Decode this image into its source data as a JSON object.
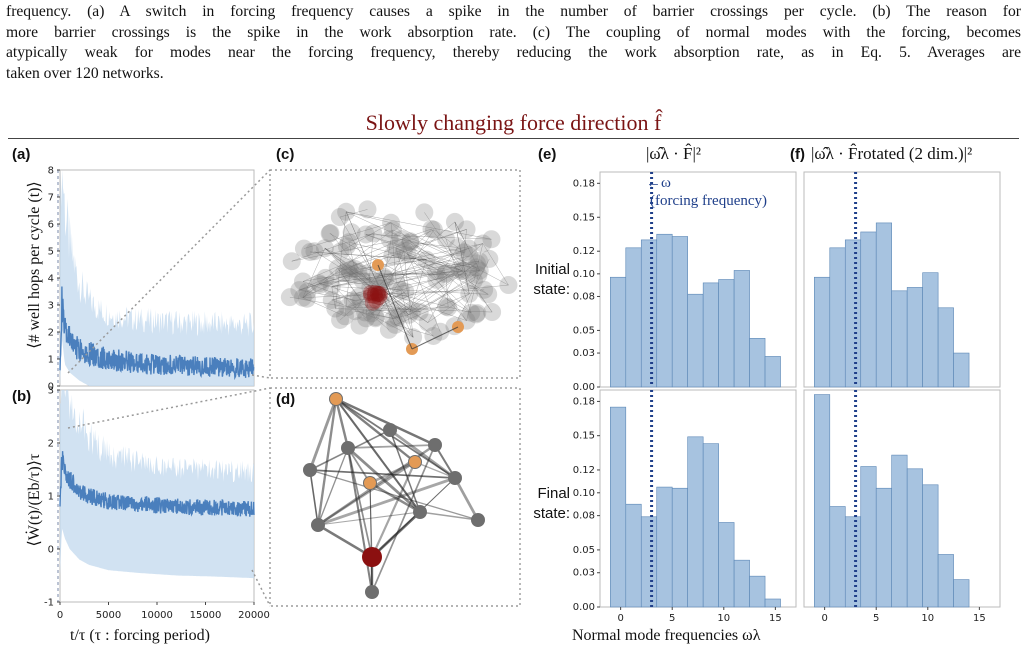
{
  "caption": {
    "lines": [
      "frequency. (a) A switch in forcing frequency causes a spike in the number of barrier crossings per cycle. (b) The reason for",
      "more barrier crossings is the spike in the work absorption rate. (c) The coupling of normal modes with the forcing, becomes",
      "atypically weak for modes near the forcing frequency, thereby reducing the work absorption rate, as in Eq. 5. Averages are",
      "taken over 120 networks."
    ]
  },
  "figure": {
    "title": "Slowly changing force direction f̂",
    "panel_labels": {
      "a": "(a)",
      "b": "(b)",
      "c": "(c)",
      "d": "(d)",
      "e": "(e)",
      "f": "(f)"
    },
    "hist_title_e": "|ω̂λ · F̂|²",
    "hist_title_f": "|ω̂λ · F̂rotated (2 dim.)|²",
    "state_initial": "Initial state:",
    "state_final": "Final state:",
    "annotation_omega": "←ω",
    "annotation_forcing": "(forcing frequency)",
    "ylabel_a": "⟨# well hops per cycle (t)⟩",
    "ylabel_b": "⟨Ẇ(t)/(Eb/τ)⟩τ",
    "xlabel_left": "t/τ    (τ : forcing period)",
    "xlabel_right": "Normal mode frequencies ωλ",
    "colors": {
      "title": "#7a1414",
      "bar": "#a7c3e0",
      "bar_edge": "#5a86b5",
      "line_dark": "#4a7fbd",
      "line_light": "#c2d8ee",
      "dotted": "#1f3f8a",
      "node_orange": "#e39a55",
      "node_red": "#8b1010"
    }
  },
  "chart_data": [
    {
      "type": "line",
      "panel": "(a)",
      "ylabel": "⟨# well hops per cycle (t)⟩",
      "xlabel": "t/τ (τ : forcing period)",
      "xlim": [
        0,
        20000
      ],
      "ylim": [
        0,
        8
      ],
      "xticks": [
        0,
        5000,
        10000,
        15000,
        20000
      ],
      "yticks": [
        0,
        1,
        2,
        3,
        4,
        5,
        6,
        7,
        8
      ],
      "series": [
        {
          "x": [
            0,
            200,
            500,
            1000,
            2000,
            3000,
            5000,
            8000,
            12000,
            16000,
            20000
          ],
          "values": [
            1.0,
            3.0,
            2.0,
            1.7,
            1.4,
            1.2,
            1.0,
            0.85,
            0.75,
            0.7,
            0.65
          ]
        }
      ]
    },
    {
      "type": "line",
      "panel": "(b)",
      "ylabel": "⟨Ẇ(t)/(Eb/τ)⟩τ",
      "xlabel": "t/τ (τ : forcing period)",
      "xlim": [
        0,
        20000
      ],
      "ylim": [
        -1,
        3
      ],
      "xticks": [
        0,
        5000,
        10000,
        15000,
        20000
      ],
      "yticks": [
        -1,
        0,
        1,
        2,
        3
      ],
      "series": [
        {
          "x": [
            0,
            200,
            500,
            1000,
            2000,
            3000,
            5000,
            8000,
            12000,
            16000,
            20000
          ],
          "values": [
            0.8,
            1.7,
            1.5,
            1.3,
            1.1,
            1.0,
            0.9,
            0.85,
            0.8,
            0.78,
            0.75
          ]
        }
      ]
    },
    {
      "type": "bar",
      "panel": "(e) Initial state",
      "categories": [
        -1,
        0.5,
        2,
        3.5,
        5,
        6.5,
        8,
        9.5,
        11,
        12.5,
        14
      ],
      "values": [
        0.097,
        0.123,
        0.13,
        0.135,
        0.133,
        0.082,
        0.092,
        0.095,
        0.103,
        0.043,
        0.027
      ],
      "xlim": [
        -2,
        17
      ],
      "ylim": [
        0,
        0.19
      ],
      "xticks": [
        0,
        5,
        10,
        15
      ],
      "yticks": [
        0.0,
        0.03,
        0.05,
        0.08,
        0.1,
        0.12,
        0.15,
        0.18
      ],
      "forcing_frequency": 3
    },
    {
      "type": "bar",
      "panel": "(f) Initial state",
      "categories": [
        -1,
        0.5,
        2,
        3.5,
        5,
        6.5,
        8,
        9.5,
        11,
        12.5,
        14
      ],
      "values": [
        0.097,
        0.123,
        0.13,
        0.137,
        0.145,
        0.085,
        0.088,
        0.101,
        0.07,
        0.03,
        0.0
      ],
      "xlim": [
        -2,
        17
      ],
      "ylim": [
        0,
        0.19
      ],
      "xticks": [
        0,
        5,
        10,
        15
      ],
      "yticks": [
        0.0,
        0.03,
        0.05,
        0.08,
        0.1,
        0.12,
        0.15,
        0.18
      ],
      "forcing_frequency": 3
    },
    {
      "type": "bar",
      "panel": "(e) Final state",
      "categories": [
        -1,
        0.5,
        2,
        3.5,
        5,
        6.5,
        8,
        9.5,
        11,
        12.5,
        14
      ],
      "values": [
        0.175,
        0.09,
        0.079,
        0.105,
        0.104,
        0.149,
        0.143,
        0.074,
        0.041,
        0.027,
        0.007
      ],
      "xlim": [
        -2,
        17
      ],
      "ylim": [
        0,
        0.19
      ],
      "xticks": [
        0,
        5,
        10,
        15
      ],
      "yticks": [
        0.0,
        0.03,
        0.05,
        0.08,
        0.1,
        0.12,
        0.15,
        0.18
      ],
      "forcing_frequency": 3
    },
    {
      "type": "bar",
      "panel": "(f) Final state",
      "categories": [
        -1,
        0.5,
        2,
        3.5,
        5,
        6.5,
        8,
        9.5,
        11,
        12.5,
        14
      ],
      "values": [
        0.186,
        0.088,
        0.079,
        0.123,
        0.104,
        0.133,
        0.121,
        0.107,
        0.046,
        0.024,
        0.0
      ],
      "xlim": [
        -2,
        17
      ],
      "ylim": [
        0,
        0.19
      ],
      "xticks": [
        0,
        5,
        10,
        15
      ],
      "yticks": [
        0.0,
        0.03,
        0.05,
        0.08,
        0.1,
        0.12,
        0.15,
        0.18
      ],
      "forcing_frequency": 3
    }
  ]
}
